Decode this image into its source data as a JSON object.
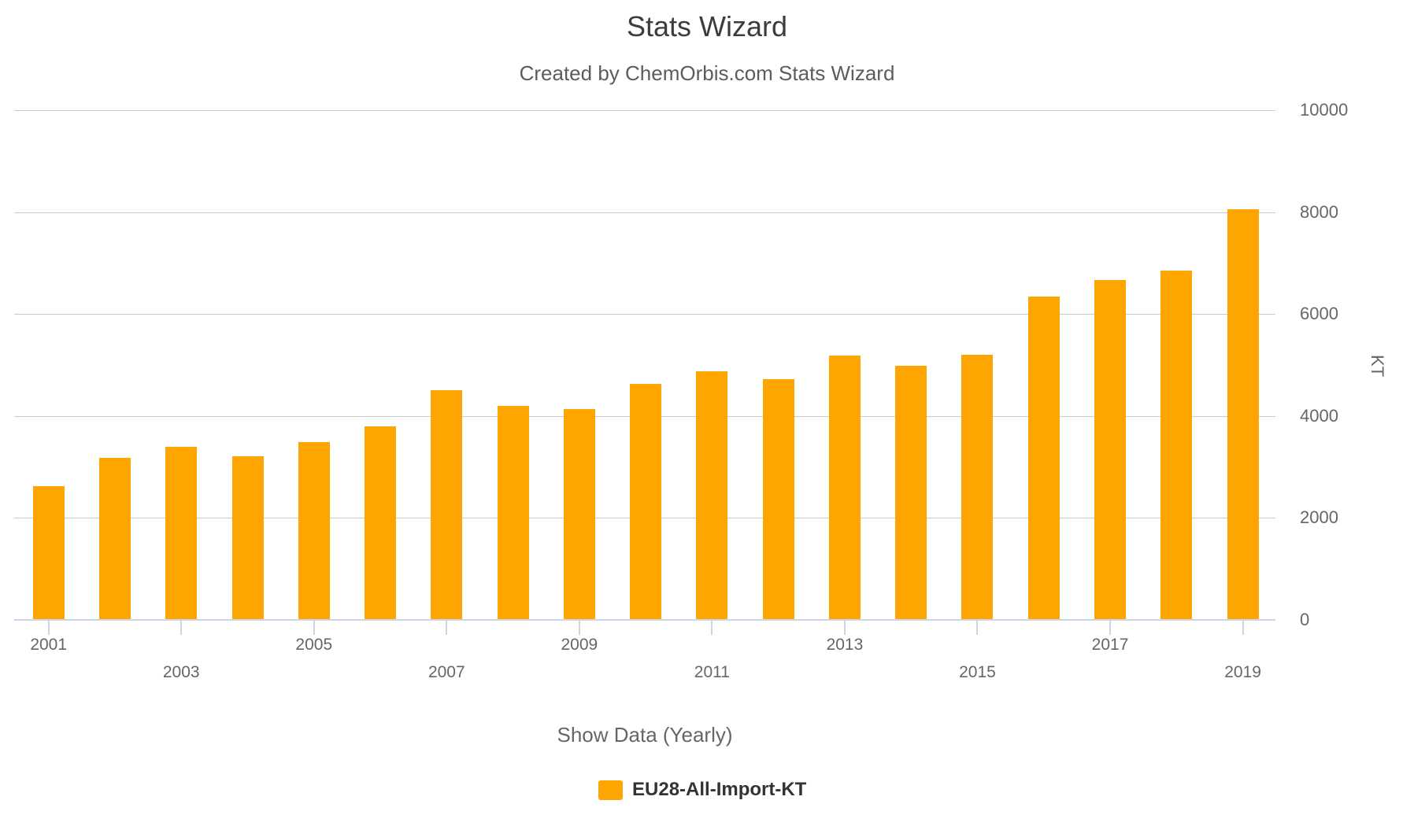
{
  "chart_data": {
    "type": "bar",
    "title": "Stats Wizard",
    "subtitle": "Created by ChemOrbis.com Stats Wizard",
    "categories": [
      2001,
      2002,
      2003,
      2004,
      2005,
      2006,
      2007,
      2008,
      2009,
      2010,
      2011,
      2012,
      2013,
      2014,
      2015,
      2016,
      2017,
      2018,
      2019
    ],
    "values": [
      2620,
      3180,
      3400,
      3210,
      3490,
      3800,
      4510,
      4200,
      4140,
      4630,
      4870,
      4720,
      5180,
      4990,
      5200,
      6340,
      6670,
      6850,
      8060
    ],
    "series_name": "EU28-All-Import-KT",
    "xlabel": "Show Data (Yearly)",
    "ylabel": "KT",
    "ylim": [
      0,
      10000
    ],
    "y_ticks": [
      0,
      2000,
      4000,
      6000,
      8000,
      10000
    ],
    "labeled_years": [
      2001,
      2003,
      2005,
      2007,
      2009,
      2011,
      2013,
      2015,
      2017,
      2019
    ],
    "grid": "horizontal-only",
    "legend_position": "bottom",
    "bar_color": "#FFA502"
  },
  "colors": {
    "bar": "#FFA502",
    "gridline": "#cacaca",
    "axis_line": "#ccd6eb",
    "title_text": "#3c3c3c",
    "subtitle_text": "#5c5c5c",
    "axis_text": "#666666",
    "legend_text": "#333333"
  }
}
